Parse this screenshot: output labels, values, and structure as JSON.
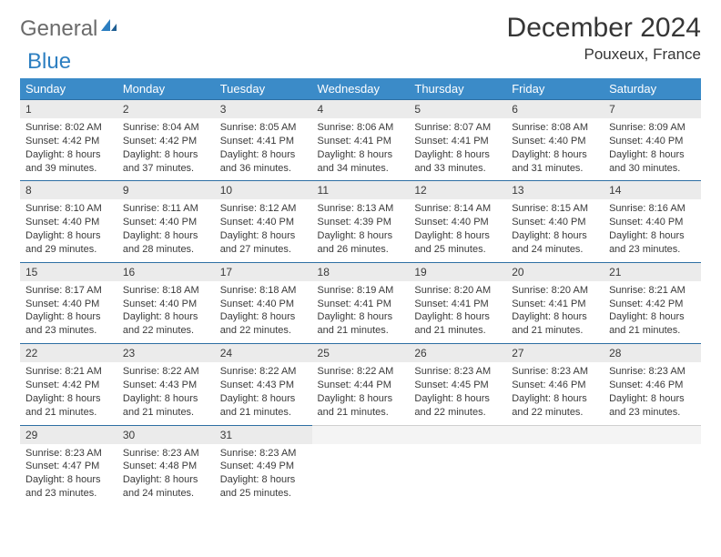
{
  "logo": {
    "part1": "General",
    "part2": "Blue"
  },
  "title": "December 2024",
  "location": "Pouxeux, France",
  "weekdays": [
    "Sunday",
    "Monday",
    "Tuesday",
    "Wednesday",
    "Thursday",
    "Friday",
    "Saturday"
  ],
  "colors": {
    "header_bg": "#3b8bc8",
    "daynum_bg": "#ebebeb",
    "row_divider": "#2d6fa3",
    "logo_gray": "#6b6b6b",
    "logo_blue": "#2d7fc1"
  },
  "weeks": [
    [
      {
        "n": "1",
        "sr": "8:02 AM",
        "ss": "4:42 PM",
        "dl": "8 hours and 39 minutes."
      },
      {
        "n": "2",
        "sr": "8:04 AM",
        "ss": "4:42 PM",
        "dl": "8 hours and 37 minutes."
      },
      {
        "n": "3",
        "sr": "8:05 AM",
        "ss": "4:41 PM",
        "dl": "8 hours and 36 minutes."
      },
      {
        "n": "4",
        "sr": "8:06 AM",
        "ss": "4:41 PM",
        "dl": "8 hours and 34 minutes."
      },
      {
        "n": "5",
        "sr": "8:07 AM",
        "ss": "4:41 PM",
        "dl": "8 hours and 33 minutes."
      },
      {
        "n": "6",
        "sr": "8:08 AM",
        "ss": "4:40 PM",
        "dl": "8 hours and 31 minutes."
      },
      {
        "n": "7",
        "sr": "8:09 AM",
        "ss": "4:40 PM",
        "dl": "8 hours and 30 minutes."
      }
    ],
    [
      {
        "n": "8",
        "sr": "8:10 AM",
        "ss": "4:40 PM",
        "dl": "8 hours and 29 minutes."
      },
      {
        "n": "9",
        "sr": "8:11 AM",
        "ss": "4:40 PM",
        "dl": "8 hours and 28 minutes."
      },
      {
        "n": "10",
        "sr": "8:12 AM",
        "ss": "4:40 PM",
        "dl": "8 hours and 27 minutes."
      },
      {
        "n": "11",
        "sr": "8:13 AM",
        "ss": "4:39 PM",
        "dl": "8 hours and 26 minutes."
      },
      {
        "n": "12",
        "sr": "8:14 AM",
        "ss": "4:40 PM",
        "dl": "8 hours and 25 minutes."
      },
      {
        "n": "13",
        "sr": "8:15 AM",
        "ss": "4:40 PM",
        "dl": "8 hours and 24 minutes."
      },
      {
        "n": "14",
        "sr": "8:16 AM",
        "ss": "4:40 PM",
        "dl": "8 hours and 23 minutes."
      }
    ],
    [
      {
        "n": "15",
        "sr": "8:17 AM",
        "ss": "4:40 PM",
        "dl": "8 hours and 23 minutes."
      },
      {
        "n": "16",
        "sr": "8:18 AM",
        "ss": "4:40 PM",
        "dl": "8 hours and 22 minutes."
      },
      {
        "n": "17",
        "sr": "8:18 AM",
        "ss": "4:40 PM",
        "dl": "8 hours and 22 minutes."
      },
      {
        "n": "18",
        "sr": "8:19 AM",
        "ss": "4:41 PM",
        "dl": "8 hours and 21 minutes."
      },
      {
        "n": "19",
        "sr": "8:20 AM",
        "ss": "4:41 PM",
        "dl": "8 hours and 21 minutes."
      },
      {
        "n": "20",
        "sr": "8:20 AM",
        "ss": "4:41 PM",
        "dl": "8 hours and 21 minutes."
      },
      {
        "n": "21",
        "sr": "8:21 AM",
        "ss": "4:42 PM",
        "dl": "8 hours and 21 minutes."
      }
    ],
    [
      {
        "n": "22",
        "sr": "8:21 AM",
        "ss": "4:42 PM",
        "dl": "8 hours and 21 minutes."
      },
      {
        "n": "23",
        "sr": "8:22 AM",
        "ss": "4:43 PM",
        "dl": "8 hours and 21 minutes."
      },
      {
        "n": "24",
        "sr": "8:22 AM",
        "ss": "4:43 PM",
        "dl": "8 hours and 21 minutes."
      },
      {
        "n": "25",
        "sr": "8:22 AM",
        "ss": "4:44 PM",
        "dl": "8 hours and 21 minutes."
      },
      {
        "n": "26",
        "sr": "8:23 AM",
        "ss": "4:45 PM",
        "dl": "8 hours and 22 minutes."
      },
      {
        "n": "27",
        "sr": "8:23 AM",
        "ss": "4:46 PM",
        "dl": "8 hours and 22 minutes."
      },
      {
        "n": "28",
        "sr": "8:23 AM",
        "ss": "4:46 PM",
        "dl": "8 hours and 23 minutes."
      }
    ],
    [
      {
        "n": "29",
        "sr": "8:23 AM",
        "ss": "4:47 PM",
        "dl": "8 hours and 23 minutes."
      },
      {
        "n": "30",
        "sr": "8:23 AM",
        "ss": "4:48 PM",
        "dl": "8 hours and 24 minutes."
      },
      {
        "n": "31",
        "sr": "8:23 AM",
        "ss": "4:49 PM",
        "dl": "8 hours and 25 minutes."
      },
      null,
      null,
      null,
      null
    ]
  ],
  "labels": {
    "sunrise": "Sunrise: ",
    "sunset": "Sunset: ",
    "daylight": "Daylight: "
  }
}
